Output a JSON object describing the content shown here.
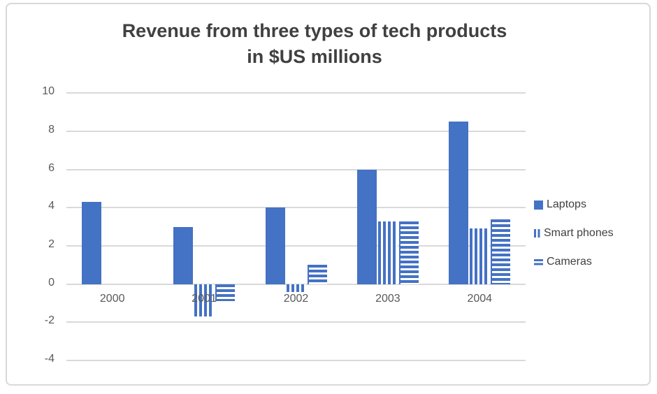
{
  "chart_data": {
    "type": "bar",
    "title": "Revenue from three types of tech products\nin $US millions",
    "categories": [
      "2000",
      "2001",
      "2002",
      "2003",
      "2004"
    ],
    "series": [
      {
        "name": "Laptops",
        "pattern": "solid",
        "values": [
          4.3,
          3.0,
          4.0,
          6.0,
          8.5
        ]
      },
      {
        "name": "Smart phones",
        "pattern": "vertical-stripes",
        "values": [
          0,
          -1.7,
          -0.4,
          3.3,
          2.9
        ]
      },
      {
        "name": "Cameras",
        "pattern": "horizontal-stripes",
        "values": [
          0,
          -0.9,
          1.0,
          3.3,
          3.4
        ]
      }
    ],
    "ylim": [
      -4,
      10
    ],
    "yticks": [
      10,
      8,
      6,
      4,
      2,
      0,
      -2,
      -4
    ],
    "grid": true,
    "legend_position": "right",
    "xlabel": "",
    "ylabel": "",
    "colors": {
      "accent_blue": "#4472C4",
      "gridline": "#D9D9D9",
      "axis_text": "#595959",
      "title_text": "#404040",
      "legend_text": "#404040",
      "frame_border": "#D8D8D8"
    }
  }
}
